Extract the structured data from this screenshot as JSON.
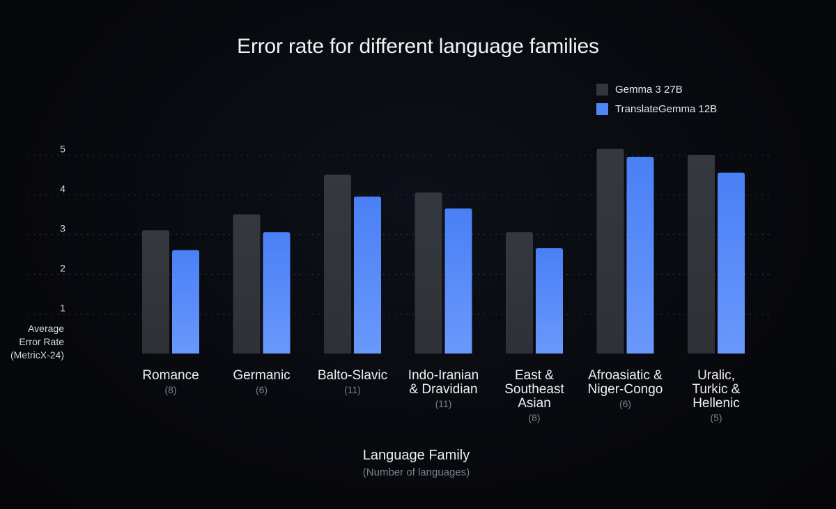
{
  "chart_data": {
    "type": "bar",
    "title": "Error rate for different language families",
    "xlabel": "Language Family",
    "xlabel_sub": "(Number of languages)",
    "ylabel": "Average\nError Rate\n(MetricX-24)",
    "ylim": [
      0,
      5.2
    ],
    "yticks": [
      1,
      2,
      3,
      4,
      5
    ],
    "grid": "horizontal dotted",
    "legend_position": "top-right",
    "categories": [
      "Romance",
      "Germanic",
      "Balto-Slavic",
      "Indo-Iranian\n& Dravidian",
      "East &\nSoutheast\nAsian",
      "Afroasiatic &\nNiger-Congo",
      "Uralic,\nTurkic &\nHellenic"
    ],
    "category_counts": [
      "(8)",
      "(6)",
      "(11)",
      "(11)",
      "(8)",
      "(6)",
      "(5)"
    ],
    "series": [
      {
        "name": "Gemma 3 27B",
        "color": "#33363c",
        "values": [
          3.1,
          3.5,
          4.5,
          4.05,
          3.05,
          5.15,
          5.0
        ]
      },
      {
        "name": "TranslateGemma 12B",
        "color": "#4f86f7",
        "values": [
          2.6,
          3.05,
          3.95,
          3.65,
          2.65,
          4.95,
          4.55
        ]
      }
    ]
  }
}
